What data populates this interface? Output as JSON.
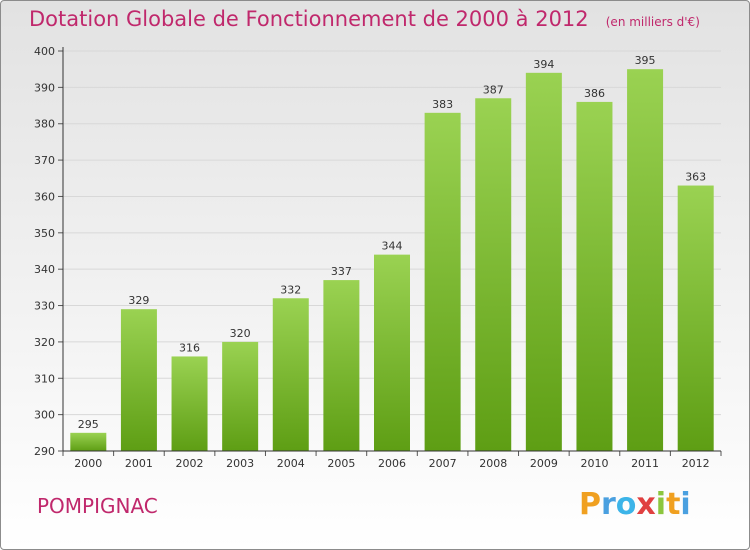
{
  "title": "Dotation Globale de Fonctionnement de 2000 à 2012",
  "unit": "(en milliers d'€)",
  "commune": "POMPIGNAC",
  "logo": "Proxiti",
  "colors": {
    "title": "#c0286c",
    "bar_light": "#9ad252",
    "bar_dark": "#5e9e14",
    "axis": "#000000",
    "grid": "#d8d8d8"
  },
  "chart_data": {
    "type": "bar",
    "categories": [
      "2000",
      "2001",
      "2002",
      "2003",
      "2004",
      "2005",
      "2006",
      "2007",
      "2008",
      "2009",
      "2010",
      "2011",
      "2012"
    ],
    "values": [
      295,
      329,
      316,
      320,
      332,
      337,
      344,
      383,
      387,
      394,
      386,
      395,
      363
    ],
    "ylim": [
      290,
      400
    ],
    "yticks": [
      290,
      300,
      310,
      320,
      330,
      340,
      350,
      360,
      370,
      380,
      390,
      400
    ],
    "grid": true,
    "data_labels": true,
    "legend": "none"
  }
}
